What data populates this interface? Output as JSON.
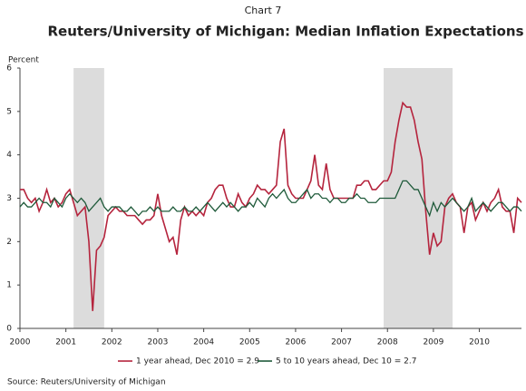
{
  "chart_data": {
    "type": "line",
    "chart_label": "Chart 7",
    "title": "Reuters/University of Michigan: Median Inflation Expectations",
    "y_label": "Percent",
    "source": "Source: Reuters/University of Michigan",
    "xlim": [
      2000,
      2010.917
    ],
    "xticks": [
      2000,
      2001,
      2002,
      2003,
      2004,
      2005,
      2006,
      2007,
      2008,
      2009,
      2010
    ],
    "ylim": [
      0,
      6
    ],
    "yticks": [
      0,
      1,
      2,
      3,
      4,
      5,
      6
    ],
    "shaded_regions": [
      [
        2001.167,
        2001.833
      ],
      [
        2007.917,
        2009.417
      ]
    ],
    "shade_color": "#dcdcdc",
    "x": [
      2000,
      2000.083,
      2000.167,
      2000.25,
      2000.333,
      2000.417,
      2000.5,
      2000.583,
      2000.667,
      2000.75,
      2000.833,
      2000.917,
      2001,
      2001.083,
      2001.167,
      2001.25,
      2001.333,
      2001.417,
      2001.5,
      2001.583,
      2001.667,
      2001.75,
      2001.833,
      2001.917,
      2002,
      2002.083,
      2002.167,
      2002.25,
      2002.333,
      2002.417,
      2002.5,
      2002.583,
      2002.667,
      2002.75,
      2002.833,
      2002.917,
      2003,
      2003.083,
      2003.167,
      2003.25,
      2003.333,
      2003.417,
      2003.5,
      2003.583,
      2003.667,
      2003.75,
      2003.833,
      2003.917,
      2004,
      2004.083,
      2004.167,
      2004.25,
      2004.333,
      2004.417,
      2004.5,
      2004.583,
      2004.667,
      2004.75,
      2004.833,
      2004.917,
      2005,
      2005.083,
      2005.167,
      2005.25,
      2005.333,
      2005.417,
      2005.5,
      2005.583,
      2005.667,
      2005.75,
      2005.833,
      2005.917,
      2006,
      2006.083,
      2006.167,
      2006.25,
      2006.333,
      2006.417,
      2006.5,
      2006.583,
      2006.667,
      2006.75,
      2006.833,
      2006.917,
      2007,
      2007.083,
      2007.167,
      2007.25,
      2007.333,
      2007.417,
      2007.5,
      2007.583,
      2007.667,
      2007.75,
      2007.833,
      2007.917,
      2008,
      2008.083,
      2008.167,
      2008.25,
      2008.333,
      2008.417,
      2008.5,
      2008.583,
      2008.667,
      2008.75,
      2008.833,
      2008.917,
      2009,
      2009.083,
      2009.167,
      2009.25,
      2009.333,
      2009.417,
      2009.5,
      2009.583,
      2009.667,
      2009.75,
      2009.833,
      2009.917,
      2010,
      2010.083,
      2010.167,
      2010.25,
      2010.333,
      2010.417,
      2010.5,
      2010.583,
      2010.667,
      2010.75,
      2010.833,
      2010.917
    ],
    "series": [
      {
        "name": "1 year ahead, Dec 2010 = 2.9",
        "color": "#b5243d",
        "values": [
          3.2,
          3.2,
          3.0,
          2.9,
          3.0,
          2.7,
          2.9,
          3.2,
          2.9,
          3.0,
          2.8,
          2.9,
          3.1,
          3.2,
          2.9,
          2.6,
          2.7,
          2.8,
          2.0,
          0.4,
          1.8,
          1.9,
          2.1,
          2.6,
          2.7,
          2.8,
          2.7,
          2.7,
          2.6,
          2.6,
          2.6,
          2.5,
          2.4,
          2.5,
          2.5,
          2.6,
          3.1,
          2.6,
          2.3,
          2.0,
          2.1,
          1.7,
          2.5,
          2.8,
          2.6,
          2.7,
          2.6,
          2.7,
          2.6,
          2.9,
          3.0,
          3.2,
          3.3,
          3.3,
          3.0,
          2.8,
          2.8,
          3.1,
          2.9,
          2.8,
          3.0,
          3.1,
          3.3,
          3.2,
          3.2,
          3.1,
          3.2,
          3.3,
          4.3,
          4.6,
          3.3,
          3.1,
          3.0,
          3.0,
          3.0,
          3.2,
          3.4,
          4.0,
          3.3,
          3.2,
          3.8,
          3.2,
          3.0,
          3.0,
          3.0,
          3.0,
          3.0,
          3.0,
          3.3,
          3.3,
          3.4,
          3.4,
          3.2,
          3.2,
          3.3,
          3.4,
          3.4,
          3.6,
          4.3,
          4.8,
          5.2,
          5.1,
          5.1,
          4.8,
          4.3,
          3.9,
          2.7,
          1.7,
          2.2,
          1.9,
          2.0,
          2.8,
          3.0,
          3.1,
          2.9,
          2.8,
          2.2,
          2.8,
          2.9,
          2.5,
          2.7,
          2.9,
          2.7,
          2.9,
          3.0,
          3.2,
          2.8,
          2.7,
          2.7,
          2.2,
          3.0,
          2.9
        ]
      },
      {
        "name": "5 to 10 years ahead, Dec 10 = 2.7",
        "color": "#1f5a3a",
        "values": [
          2.8,
          2.9,
          2.8,
          2.8,
          2.9,
          3.0,
          2.9,
          2.9,
          2.8,
          3.0,
          2.9,
          2.8,
          3.0,
          3.1,
          3.0,
          2.9,
          3.0,
          2.9,
          2.7,
          2.8,
          2.9,
          3.0,
          2.8,
          2.7,
          2.8,
          2.8,
          2.8,
          2.7,
          2.7,
          2.8,
          2.7,
          2.6,
          2.7,
          2.7,
          2.8,
          2.7,
          2.8,
          2.7,
          2.7,
          2.7,
          2.8,
          2.7,
          2.7,
          2.8,
          2.7,
          2.7,
          2.8,
          2.7,
          2.8,
          2.9,
          2.8,
          2.7,
          2.8,
          2.9,
          2.8,
          2.9,
          2.8,
          2.7,
          2.8,
          2.8,
          2.9,
          2.8,
          3.0,
          2.9,
          2.8,
          3.0,
          3.1,
          3.0,
          3.1,
          3.2,
          3.0,
          2.9,
          2.9,
          3.0,
          3.1,
          3.2,
          3.0,
          3.1,
          3.1,
          3.0,
          3.0,
          2.9,
          3.0,
          3.0,
          2.9,
          2.9,
          3.0,
          3.0,
          3.1,
          3.0,
          3.0,
          2.9,
          2.9,
          2.9,
          3.0,
          3.0,
          3.0,
          3.0,
          3.0,
          3.2,
          3.4,
          3.4,
          3.3,
          3.2,
          3.2,
          3.0,
          2.8,
          2.6,
          2.9,
          2.7,
          2.9,
          2.8,
          2.9,
          3.0,
          2.9,
          2.8,
          2.7,
          2.8,
          3.0,
          2.7,
          2.8,
          2.9,
          2.8,
          2.7,
          2.8,
          2.9,
          2.9,
          2.8,
          2.7,
          2.8,
          2.8,
          2.7
        ]
      }
    ]
  }
}
